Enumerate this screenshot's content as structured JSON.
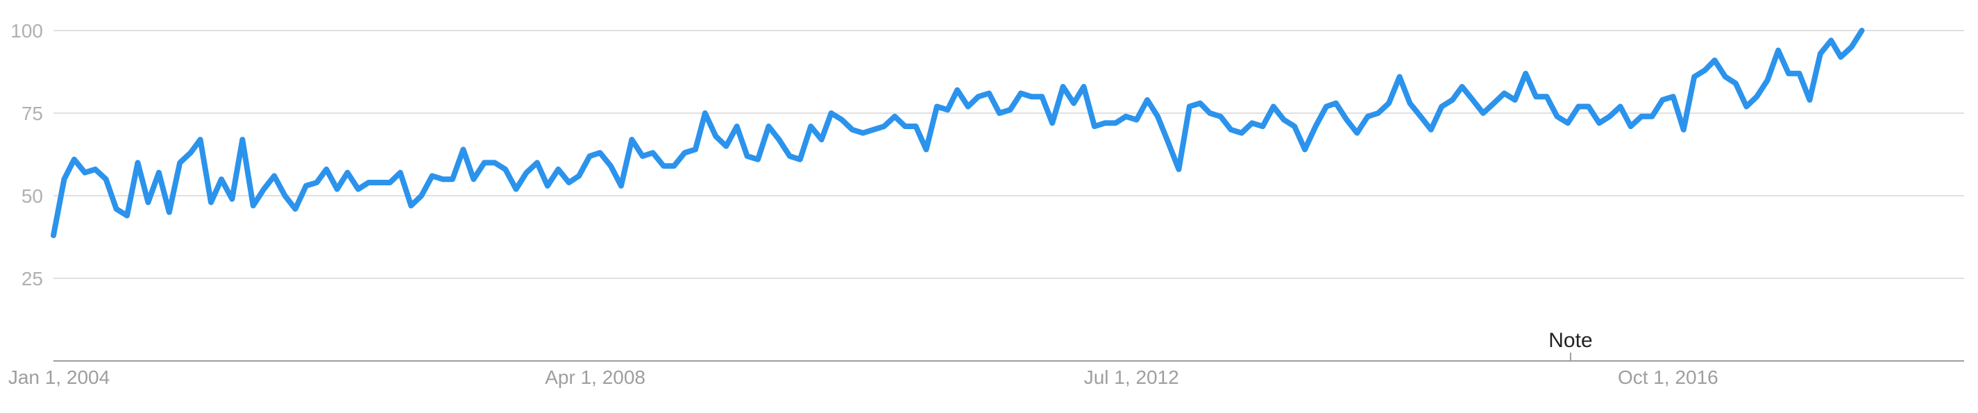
{
  "chart_data": {
    "type": "line",
    "title": "",
    "xlabel": "",
    "ylabel": "",
    "ylim": [
      0,
      100
    ],
    "y_ticks": [
      {
        "value": 25,
        "label": "25"
      },
      {
        "value": 50,
        "label": "50"
      },
      {
        "value": 75,
        "label": "75"
      },
      {
        "value": 100,
        "label": "100"
      }
    ],
    "x_range": [
      "2004-01-01",
      "2019-02-01"
    ],
    "x_ticks": [
      {
        "date": "2004-01-01",
        "label": "Jan 1, 2004"
      },
      {
        "date": "2008-04-01",
        "label": "Apr 1, 2008"
      },
      {
        "date": "2012-07-01",
        "label": "Jul 1, 2012"
      },
      {
        "date": "2016-10-01",
        "label": "Oct 1, 2016"
      }
    ],
    "annotation": {
      "date": "2016-01-01",
      "label": "Note"
    },
    "grid": true,
    "legend": "none",
    "color": "#2b93ec",
    "series": [
      {
        "name": "",
        "start": "2004-01",
        "frequency": "monthly",
        "values": [
          38,
          55,
          61,
          57,
          58,
          55,
          46,
          44,
          60,
          48,
          57,
          45,
          60,
          63,
          67,
          48,
          55,
          49,
          67,
          47,
          52,
          56,
          50,
          46,
          53,
          54,
          58,
          52,
          57,
          52,
          54,
          54,
          54,
          57,
          47,
          50,
          56,
          55,
          55,
          64,
          55,
          60,
          60,
          58,
          52,
          57,
          60,
          53,
          58,
          54,
          56,
          62,
          63,
          59,
          53,
          67,
          62,
          63,
          59,
          59,
          63,
          64,
          75,
          68,
          65,
          71,
          62,
          61,
          71,
          67,
          62,
          61,
          71,
          67,
          75,
          73,
          70,
          69,
          70,
          71,
          74,
          71,
          71,
          64,
          77,
          76,
          82,
          77,
          80,
          81,
          75,
          76,
          81,
          80,
          80,
          72,
          83,
          78,
          83,
          71,
          72,
          72,
          74,
          73,
          79,
          74,
          66,
          58,
          77,
          78,
          75,
          74,
          70,
          69,
          72,
          71,
          77,
          73,
          71,
          64,
          71,
          77,
          78,
          73,
          69,
          74,
          75,
          78,
          86,
          78,
          74,
          70,
          77,
          79,
          83,
          79,
          75,
          78,
          81,
          79,
          87,
          80,
          80,
          74,
          72,
          77,
          77,
          72,
          74,
          77,
          71,
          74,
          74,
          79,
          80,
          70,
          86,
          88,
          91,
          86,
          84,
          77,
          80,
          85,
          94,
          87,
          87,
          79,
          93,
          97,
          92,
          95,
          100
        ]
      }
    ]
  }
}
